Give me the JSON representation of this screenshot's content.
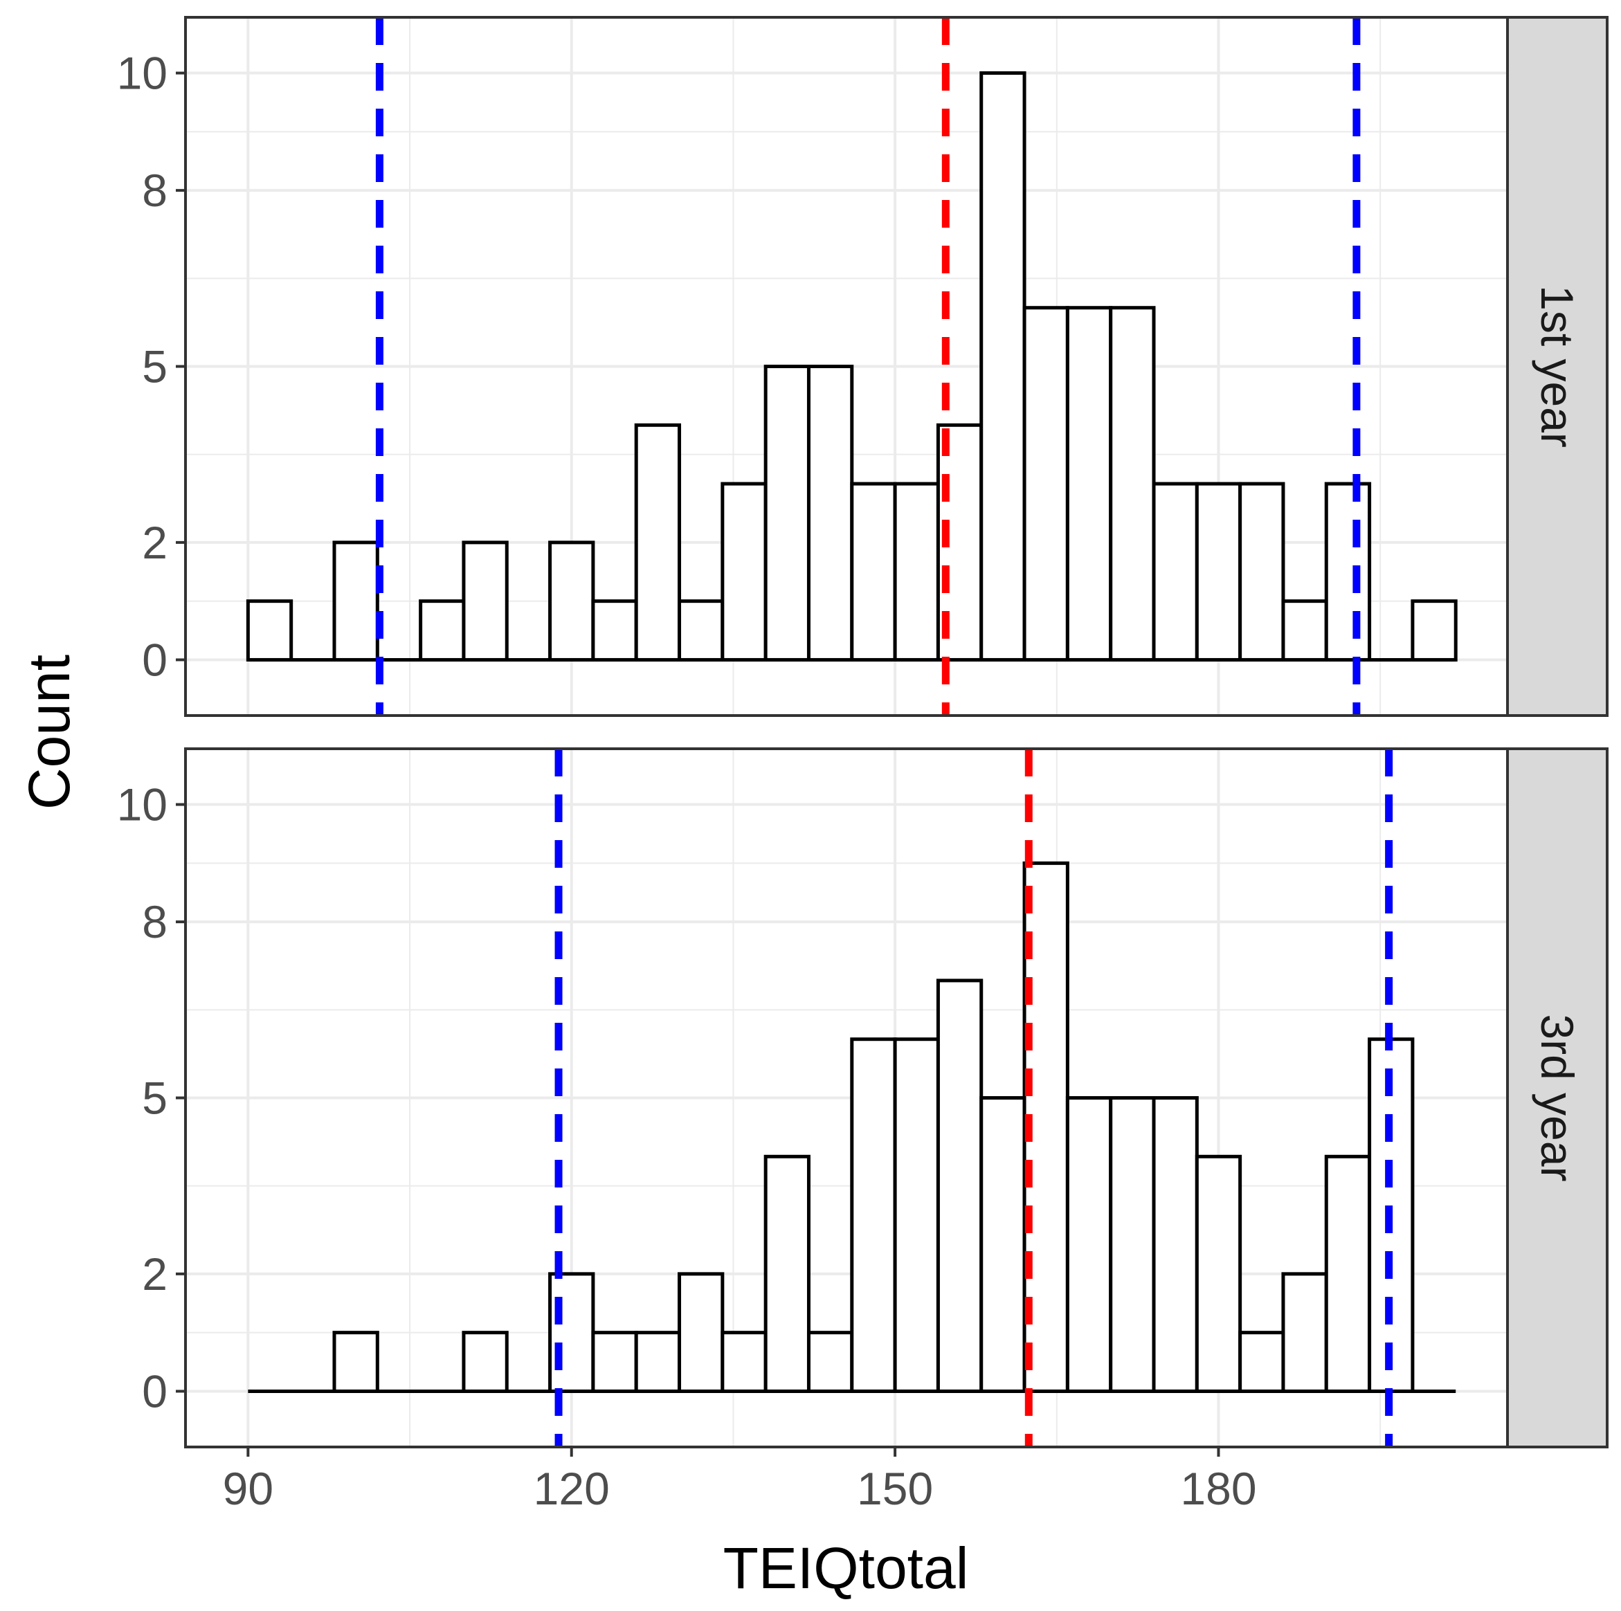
{
  "chart_data": {
    "type": "bar",
    "subtype": "faceted-histogram",
    "xlabel": "TEIQtotal",
    "ylabel": "Count",
    "xlim": [
      84.2,
      206.8
    ],
    "ylim": [
      -0.95,
      10.95
    ],
    "x_ticks": [
      90,
      120,
      150,
      180
    ],
    "y_ticks": [
      0,
      2,
      5,
      8,
      10
    ],
    "y_tick_labels": [
      "0",
      "2",
      "5",
      "8",
      "10"
    ],
    "bin_start": 90,
    "bin_width": 4,
    "style": {
      "bar_fill": "#ffffff",
      "bar_stroke": "#000000",
      "mean_line_color": "#ff0000",
      "sd_line_color": "#0000ff",
      "grid_color": "#ebebeb",
      "strip_fill": "#d9d9d9",
      "panel_border": "#333333"
    },
    "panels": [
      {
        "strip": "1st year",
        "counts": [
          1,
          0,
          2,
          0,
          1,
          2,
          0,
          2,
          1,
          4,
          1,
          3,
          5,
          5,
          3,
          3,
          4,
          10,
          6,
          6,
          6,
          3,
          3,
          3,
          1,
          3,
          0,
          1
        ],
        "mean": 154.7,
        "sd_lines": [
          102.2,
          192.8
        ]
      },
      {
        "strip": "3rd year",
        "counts": [
          0,
          0,
          1,
          0,
          0,
          1,
          0,
          2,
          1,
          1,
          2,
          1,
          4,
          1,
          6,
          6,
          7,
          5,
          9,
          5,
          5,
          5,
          4,
          1,
          2,
          4,
          6,
          0
        ],
        "mean": 162.4,
        "sd_lines": [
          118.8,
          195.8
        ]
      }
    ]
  }
}
